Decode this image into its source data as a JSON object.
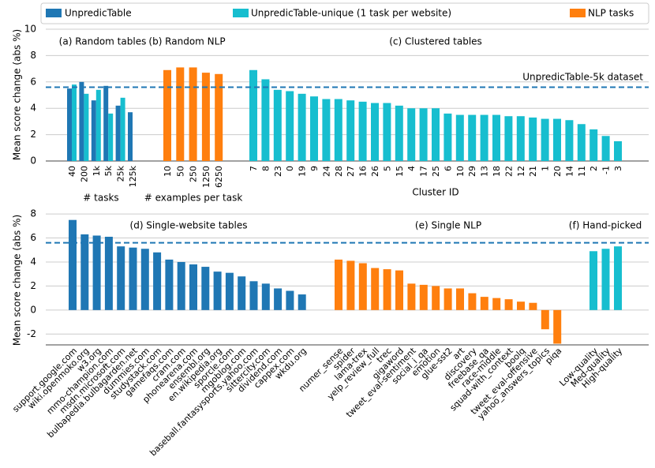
{
  "legend": [
    {
      "name": "UnpredicTable",
      "color": "#1f77b4"
    },
    {
      "name": "UnpredicTable-unique (1 task per website)",
      "color": "#17becf"
    },
    {
      "name": "NLP tasks",
      "color": "#ff7f0e"
    }
  ],
  "chart_data": [
    {
      "type": "bar",
      "ylabel": "Mean score change (abs %)",
      "ylim": [
        0,
        10
      ],
      "yticks": [
        0,
        2,
        4,
        6,
        8,
        10
      ],
      "grid": true,
      "reference_line": {
        "value": 5.6,
        "label": "UnpredicTable-5k dataset"
      },
      "groups": [
        {
          "title": "(a) Random tables",
          "xlabel": "# tasks",
          "categories": [
            "40",
            "200",
            "1k",
            "5k",
            "25k",
            "125k"
          ],
          "series": [
            {
              "color": "#1f77b4",
              "values": [
                5.5,
                6.0,
                4.6,
                5.7,
                4.2,
                3.7
              ]
            },
            {
              "color": "#17becf",
              "values": [
                5.8,
                5.1,
                5.4,
                3.6,
                4.8,
                null
              ]
            }
          ]
        },
        {
          "title": "(b) Random NLP",
          "xlabel": "# examples per task",
          "categories": [
            "10",
            "50",
            "250",
            "1250",
            "6250"
          ],
          "series": [
            {
              "color": "#ff7f0e",
              "values": [
                6.9,
                7.1,
                7.1,
                6.7,
                6.6
              ]
            }
          ]
        },
        {
          "title": "(c) Clustered tables",
          "xlabel": "Cluster ID",
          "categories": [
            "7",
            "8",
            "23",
            "0",
            "19",
            "9",
            "24",
            "28",
            "27",
            "16",
            "26",
            "5",
            "15",
            "4",
            "17",
            "25",
            "6",
            "10",
            "29",
            "13",
            "18",
            "22",
            "12",
            "21",
            "1",
            "20",
            "14",
            "11",
            "2",
            "-1",
            "3"
          ],
          "series": [
            {
              "color": "#17becf",
              "values": [
                6.9,
                6.2,
                5.4,
                5.3,
                5.1,
                4.9,
                4.7,
                4.7,
                4.6,
                4.5,
                4.4,
                4.4,
                4.2,
                4.0,
                4.0,
                4.0,
                3.6,
                3.5,
                3.5,
                3.5,
                3.5,
                3.4,
                3.4,
                3.3,
                3.2,
                3.2,
                3.1,
                2.8,
                2.4,
                1.9,
                1.5
              ]
            }
          ]
        }
      ]
    },
    {
      "type": "bar",
      "ylabel": "Mean score change (abs %)",
      "ylim": [
        -2.9,
        8.4
      ],
      "yticks": [
        -2,
        0,
        2,
        4,
        6,
        8
      ],
      "grid": true,
      "reference_line": {
        "value": 5.6
      },
      "groups": [
        {
          "title": "(d) Single-website tables",
          "categories": [
            "support.google.com",
            "wiki.openmoko.org",
            "w3.org",
            "mmo-champion.com",
            "msdn.microsoft.com",
            "bulbapedia.bulbagarden.net",
            "dummies.com",
            "studystack.com",
            "gamefaqs.com",
            "cram.com",
            "phonearena.com",
            "ensembl.org",
            "en.wikipedia.org",
            "sporcle.com",
            "mgoblog.com",
            "baseball.fantasysports.yahoo.com",
            "sittercity.com",
            "dividend.com",
            "cappex.com",
            "wkdu.org"
          ],
          "series": [
            {
              "color": "#1f77b4",
              "values": [
                7.5,
                6.3,
                6.2,
                6.1,
                5.3,
                5.2,
                5.1,
                4.8,
                4.2,
                4.0,
                3.8,
                3.6,
                3.2,
                3.1,
                2.8,
                2.4,
                2.2,
                1.8,
                1.6,
                1.3
              ]
            }
          ]
        },
        {
          "title": "(e) Single NLP",
          "categories": [
            "numer_sense",
            "spider",
            "lama-trex",
            "yelp_review_full",
            "trec",
            "gigaword",
            "tweet_eval-sentiment",
            "social_i_qa",
            "emotion",
            "glue-sst2",
            "art",
            "discovery",
            "freebase_qa",
            "race-middle",
            "squad-with_context",
            "boolq",
            "tweet_eval-offensive",
            "yahoo_answers_topics",
            "piqa"
          ],
          "series": [
            {
              "color": "#ff7f0e",
              "values": [
                4.2,
                4.1,
                3.9,
                3.5,
                3.4,
                3.3,
                2.2,
                2.1,
                2.0,
                1.8,
                1.8,
                1.4,
                1.1,
                1.0,
                0.9,
                0.7,
                0.6,
                -1.6,
                -2.8
              ]
            }
          ]
        },
        {
          "title": "(f) Hand-picked",
          "categories": [
            "Low-quality",
            "Med-quality",
            "High-quality"
          ],
          "series": [
            {
              "color": "#17becf",
              "values": [
                4.9,
                5.1,
                5.3
              ]
            }
          ]
        }
      ]
    }
  ]
}
